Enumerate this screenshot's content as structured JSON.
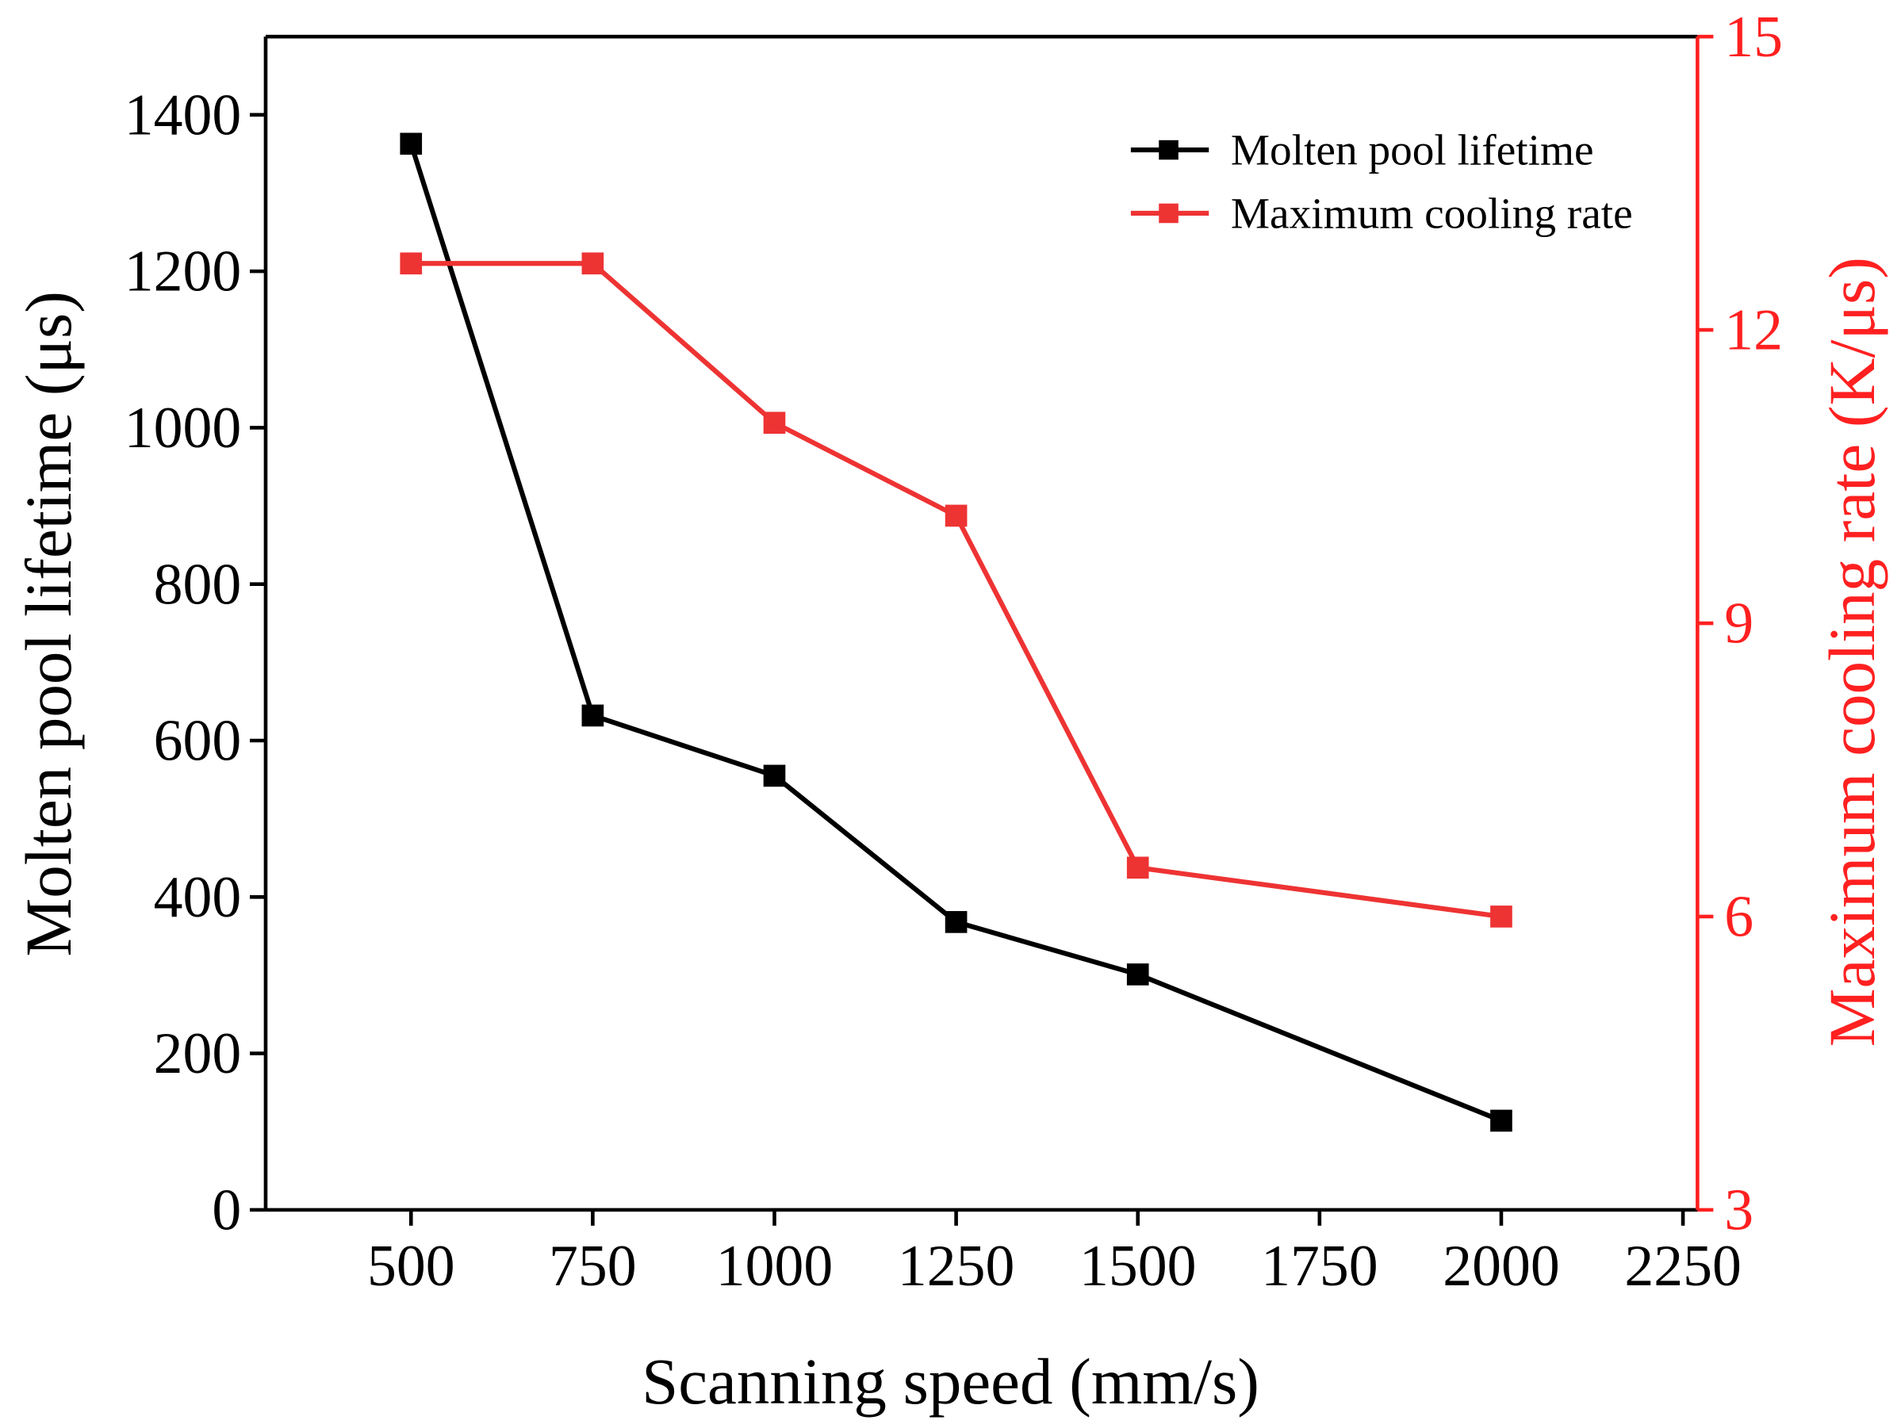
{
  "chart_data": {
    "type": "line",
    "title": "",
    "xlabel": "Scanning speed (mm/s)",
    "ylabel": "Molten pool lifetime (μs)",
    "ylabel_right": "Maximum cooling rate (K/μs)",
    "xlim": [
      300,
      2270
    ],
    "ylim": [
      0,
      1500
    ],
    "ylim_right": [
      3,
      15
    ],
    "xticks": [
      500,
      750,
      1000,
      1250,
      1500,
      1750,
      2000,
      2250
    ],
    "yticks": [
      0,
      200,
      400,
      600,
      800,
      1000,
      1200,
      1400
    ],
    "yticks_right": [
      3,
      6,
      9,
      12,
      15
    ],
    "grid": false,
    "legend_position": "top-right",
    "x": [
      500,
      750,
      1000,
      1250,
      1500,
      2000
    ],
    "series": [
      {
        "name": "Molten pool lifetime",
        "axis": "left",
        "color": "#000000",
        "values": [
          1363,
          632,
          555,
          368,
          301,
          114
        ]
      },
      {
        "name": "Maximum cooling rate",
        "axis": "right",
        "color": "#ee3333",
        "values": [
          12.68,
          12.68,
          11.05,
          10.1,
          6.5,
          6.0
        ]
      }
    ],
    "colors": {
      "right_axis": "#ff2020"
    }
  }
}
